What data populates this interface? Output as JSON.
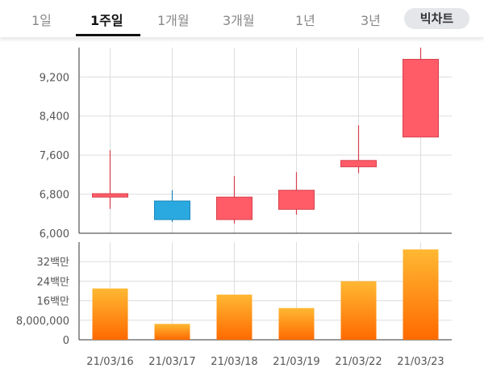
{
  "tabs": [
    {
      "label": "1일"
    },
    {
      "label": "1주일"
    },
    {
      "label": "1개월"
    },
    {
      "label": "3개월"
    },
    {
      "label": "1년"
    },
    {
      "label": "3년"
    }
  ],
  "active_tab": "1주일",
  "pill_label": "빅차트",
  "colors": {
    "up": "#ff5c68",
    "down": "#2aa9e0",
    "volume_top": "#ffb833",
    "volume_bottom": "#ff6a00",
    "grid": "#dddddd"
  },
  "chart_data": [
    {
      "type": "candlestick",
      "categories": [
        "21/03/16",
        "21/03/17",
        "21/03/18",
        "21/03/19",
        "21/03/22",
        "21/03/23"
      ],
      "open": [
        6740,
        6660,
        6280,
        6490,
        7360,
        7970
      ],
      "close": [
        6810,
        6280,
        6740,
        6880,
        7490,
        9560
      ],
      "high": [
        7700,
        6880,
        7170,
        7250,
        8210,
        9800
      ],
      "low": [
        6500,
        6230,
        6200,
        6380,
        7230,
        7970
      ],
      "ylim": [
        6000,
        9800
      ],
      "yticks": [
        6000,
        6800,
        7600,
        8400,
        9200
      ],
      "ytick_labels": [
        "6,000",
        "6,800",
        "7,600",
        "8,400",
        "9,200"
      ],
      "grid": true
    },
    {
      "type": "bar",
      "categories": [
        "21/03/16",
        "21/03/17",
        "21/03/18",
        "21/03/19",
        "21/03/22",
        "21/03/23"
      ],
      "values": [
        21000000,
        6500000,
        18500000,
        13000000,
        24000000,
        37000000
      ],
      "ylim": [
        0,
        40000000
      ],
      "yticks": [
        0,
        8000000,
        16000000,
        24000000,
        32000000
      ],
      "ytick_labels": [
        "0",
        "8,000,000",
        "16백만",
        "24백만",
        "32백만"
      ],
      "grid": true
    }
  ]
}
